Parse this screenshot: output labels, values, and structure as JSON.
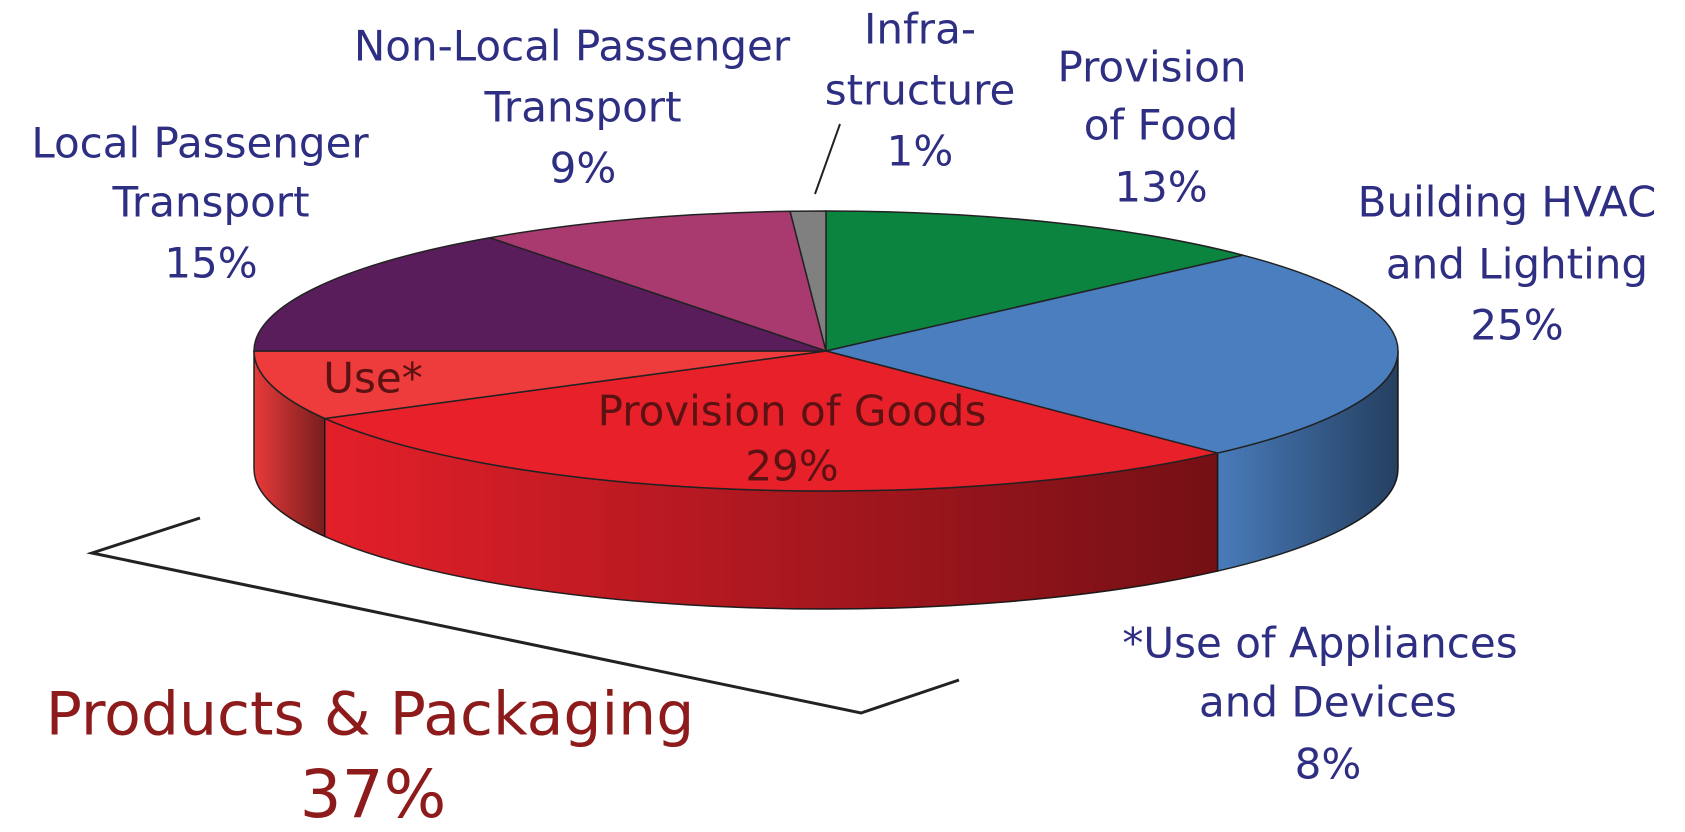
{
  "chart_data": {
    "type": "pie3d",
    "categories": [
      [
        "Provision",
        "of Food"
      ],
      [
        "Building HVAC",
        "and Lighting"
      ],
      [
        "Provision of Goods"
      ],
      [
        "Use*"
      ],
      [
        "Local Passenger",
        "Transport"
      ],
      [
        "Non-Local Passenger",
        "Transport"
      ],
      [
        "Infra-",
        "structure"
      ]
    ],
    "values": [
      13,
      25,
      29,
      8,
      15,
      9,
      1
    ],
    "value_labels": [
      "13%",
      "25%",
      "29%",
      "8%",
      "15%",
      "9%",
      "1%"
    ],
    "colors": [
      "#0b8440",
      "#4a7ebf",
      "#e8202a",
      "#ee3b3b",
      "#5a1d5c",
      "#a83a70",
      "#808080"
    ],
    "footnote": [
      "*Use of Appliances",
      "and Devices"
    ],
    "group": {
      "name": "Products & Packaging",
      "value": 37,
      "value_label": "37%"
    }
  }
}
